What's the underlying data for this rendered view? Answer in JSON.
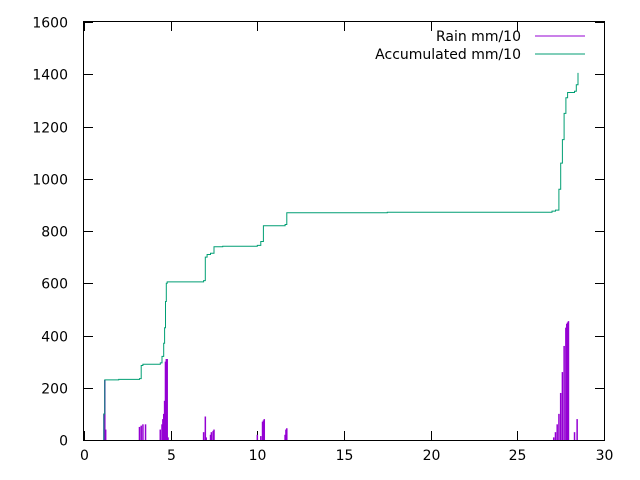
{
  "chart_data": {
    "type": "line",
    "xlim": [
      0,
      30
    ],
    "ylim": [
      0,
      1600
    ],
    "x_ticks": [
      "0",
      "5",
      "10",
      "15",
      "20",
      "25",
      "30"
    ],
    "y_ticks": [
      "0",
      "200",
      "400",
      "600",
      "800",
      "1000",
      "1200",
      "1400",
      "1600"
    ],
    "grid": false,
    "legend_position": "top-right",
    "series": [
      {
        "name": "Rain mm/10",
        "style": "impulses",
        "color": "#9400d3",
        "points": [
          [
            1.15,
            100
          ],
          [
            1.2,
            230
          ],
          [
            1.25,
            40
          ],
          [
            3.2,
            50
          ],
          [
            3.3,
            55
          ],
          [
            3.4,
            60
          ],
          [
            3.55,
            60
          ],
          [
            4.4,
            40
          ],
          [
            4.5,
            60
          ],
          [
            4.55,
            80
          ],
          [
            4.6,
            100
          ],
          [
            4.65,
            150
          ],
          [
            4.7,
            300
          ],
          [
            4.75,
            310
          ],
          [
            4.8,
            310
          ],
          [
            4.85,
            10
          ],
          [
            6.9,
            30
          ],
          [
            7.0,
            90
          ],
          [
            7.05,
            10
          ],
          [
            7.3,
            20
          ],
          [
            7.35,
            30
          ],
          [
            7.45,
            35
          ],
          [
            7.5,
            40
          ],
          [
            10.0,
            20
          ],
          [
            10.2,
            15
          ],
          [
            10.3,
            70
          ],
          [
            10.35,
            75
          ],
          [
            10.4,
            80
          ],
          [
            11.6,
            20
          ],
          [
            11.65,
            40
          ],
          [
            11.7,
            45
          ],
          [
            27.1,
            10
          ],
          [
            27.2,
            30
          ],
          [
            27.3,
            60
          ],
          [
            27.4,
            100
          ],
          [
            27.5,
            180
          ],
          [
            27.6,
            260
          ],
          [
            27.7,
            360
          ],
          [
            27.8,
            430
          ],
          [
            27.85,
            445
          ],
          [
            27.9,
            450
          ],
          [
            27.95,
            455
          ],
          [
            28.3,
            30
          ],
          [
            28.45,
            80
          ]
        ]
      },
      {
        "name": "Accumulated mm/10",
        "style": "steps",
        "color": "#009e73",
        "points": [
          [
            1.15,
            0
          ],
          [
            1.15,
            100
          ],
          [
            1.2,
            230
          ],
          [
            2.0,
            232
          ],
          [
            3.2,
            235
          ],
          [
            3.3,
            285
          ],
          [
            3.4,
            290
          ],
          [
            4.4,
            295
          ],
          [
            4.5,
            320
          ],
          [
            4.6,
            370
          ],
          [
            4.65,
            430
          ],
          [
            4.7,
            530
          ],
          [
            4.75,
            600
          ],
          [
            4.8,
            605
          ],
          [
            6.9,
            610
          ],
          [
            7.0,
            700
          ],
          [
            7.1,
            710
          ],
          [
            7.3,
            715
          ],
          [
            7.5,
            740
          ],
          [
            8.0,
            742
          ],
          [
            10.0,
            745
          ],
          [
            10.2,
            760
          ],
          [
            10.35,
            820
          ],
          [
            11.6,
            825
          ],
          [
            11.7,
            870
          ],
          [
            17.5,
            872
          ],
          [
            27.0,
            876
          ],
          [
            27.2,
            880
          ],
          [
            27.4,
            960
          ],
          [
            27.5,
            1060
          ],
          [
            27.6,
            1150
          ],
          [
            27.7,
            1250
          ],
          [
            27.8,
            1310
          ],
          [
            27.9,
            1330
          ],
          [
            28.3,
            1335
          ],
          [
            28.4,
            1360
          ],
          [
            28.5,
            1405
          ]
        ]
      }
    ]
  }
}
